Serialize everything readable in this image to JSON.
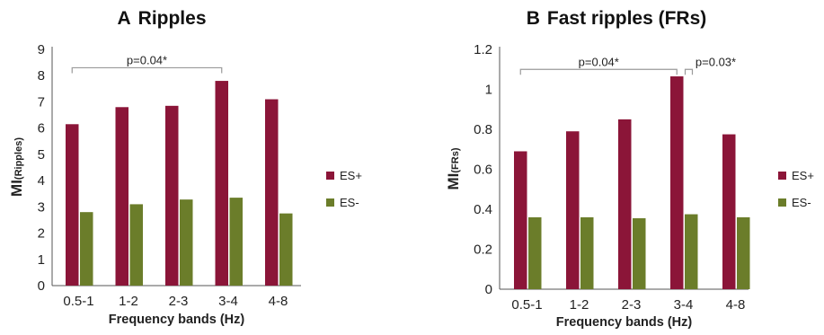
{
  "colors": {
    "es_plus": "#8B1538",
    "es_minus": "#6B7D2A",
    "axis": "#555555",
    "bracket": "#9a9a9a"
  },
  "chart_data": [
    {
      "type": "bar",
      "panel_letter": "A",
      "title": "Ripples",
      "ylabel_main": "MI",
      "ylabel_sub": "(Ripples)",
      "xlabel": "Frequency bands (Hz)",
      "categories": [
        "0.5-1",
        "1-2",
        "2-3",
        "3-4",
        "4-8"
      ],
      "series": [
        {
          "name": "ES+",
          "values": [
            6.15,
            6.8,
            6.85,
            7.8,
            7.1
          ]
        },
        {
          "name": "ES-",
          "values": [
            2.8,
            3.1,
            3.28,
            3.35,
            2.75
          ]
        }
      ],
      "ylim": [
        0,
        9
      ],
      "yticks": [
        "0",
        "1",
        "2",
        "3",
        "4",
        "5",
        "6",
        "7",
        "8",
        "9"
      ],
      "legend_position": "right",
      "annotations": [
        {
          "text": "p=0.04*",
          "from": "0.5-1",
          "to": "3-4",
          "level": 8.3
        }
      ]
    },
    {
      "type": "bar",
      "panel_letter": "B",
      "title": "Fast ripples (FRs)",
      "ylabel_main": "MI",
      "ylabel_sub": "(FRs)",
      "xlabel": "Frequency bands (Hz)",
      "categories": [
        "0.5-1",
        "1-2",
        "2-3",
        "3-4",
        "4-8"
      ],
      "series": [
        {
          "name": "ES+",
          "values": [
            0.69,
            0.79,
            0.85,
            1.065,
            0.775
          ]
        },
        {
          "name": "ES-",
          "values": [
            0.36,
            0.36,
            0.355,
            0.375,
            0.36
          ]
        }
      ],
      "ylim": [
        0,
        1.2
      ],
      "yticks": [
        "0",
        "0.2",
        "0.4",
        "0.6",
        "0.8",
        "1",
        "1.2"
      ],
      "legend_position": "right",
      "annotations": [
        {
          "text": "p=0.04*",
          "from": "0.5-1",
          "to": "3-4",
          "level": 1.1
        },
        {
          "text": "p=0.03*",
          "from": "3-4",
          "to": "4-8",
          "level": 1.1
        }
      ]
    }
  ]
}
